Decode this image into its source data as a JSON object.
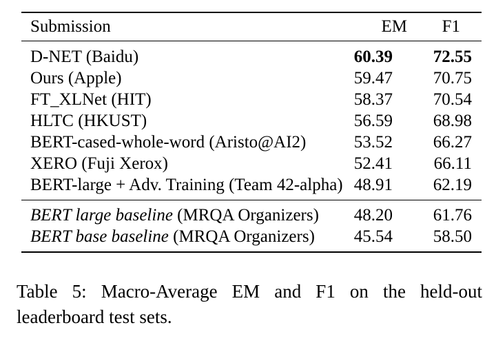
{
  "table": {
    "headers": {
      "submission": "Submission",
      "em": "EM",
      "f1": "F1"
    },
    "rows": [
      {
        "submission": "D-NET (Baidu)",
        "em": "60.39",
        "f1": "72.55"
      },
      {
        "submission": "Ours (Apple)",
        "em": "59.47",
        "f1": "70.75"
      },
      {
        "submission": "FT_XLNet (HIT)",
        "em": "58.37",
        "f1": "70.54"
      },
      {
        "submission": "HLTC (HKUST)",
        "em": "56.59",
        "f1": "68.98"
      },
      {
        "submission": "BERT-cased-whole-word (Aristo@AI2)",
        "em": "53.52",
        "f1": "66.27"
      },
      {
        "submission": "XERO (Fuji Xerox)",
        "em": "52.41",
        "f1": "66.11"
      },
      {
        "submission": "BERT-large + Adv. Training (Team 42-alpha)",
        "em": "48.91",
        "f1": "62.19"
      }
    ],
    "baselines": [
      {
        "name_italic": "BERT large baseline",
        "org": "(MRQA Organizers)",
        "em": "48.20",
        "f1": "61.76"
      },
      {
        "name_italic": "BERT base baseline",
        "org": "(MRQA Organizers)",
        "em": "45.54",
        "f1": "58.50"
      }
    ]
  },
  "caption": {
    "line1": "Table 5: Macro-Average EM and F1 on the held-out",
    "line2": "leaderboard test sets."
  }
}
